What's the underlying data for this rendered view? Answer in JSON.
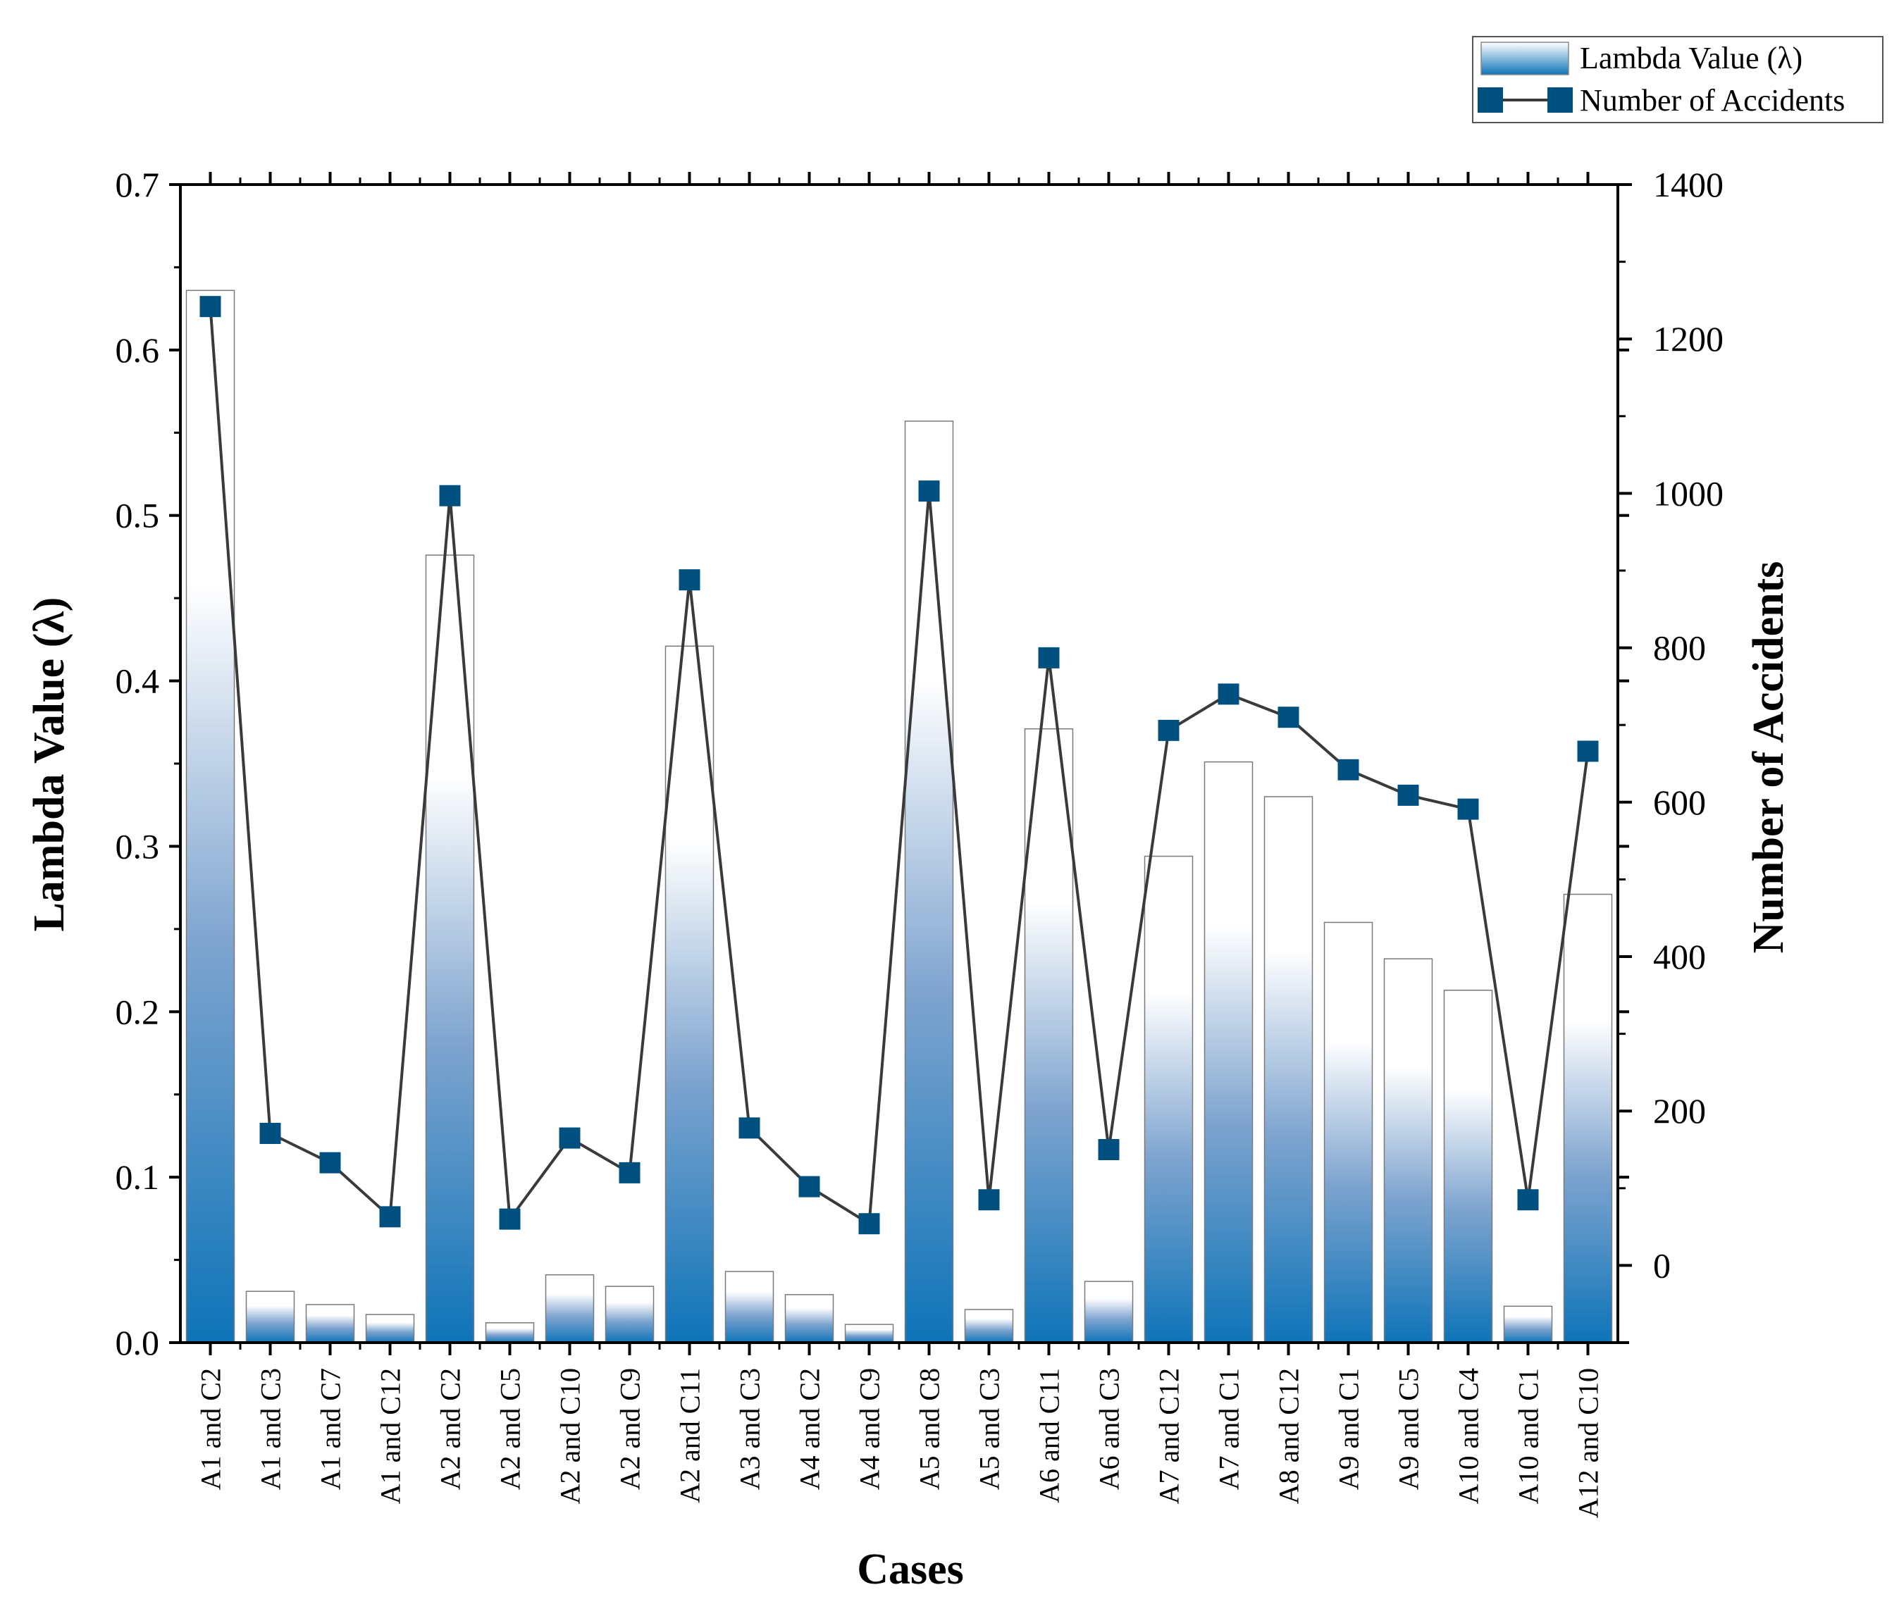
{
  "chart_data": {
    "type": "bar",
    "title": "",
    "xlabel": "Cases",
    "ylabel": "Lambda Value (λ)",
    "y2label": "Number of Accidents",
    "ylim": [
      0,
      0.7
    ],
    "y2lim": [
      -100,
      1400
    ],
    "yticks": [
      "0.0",
      "0.1",
      "0.2",
      "0.3",
      "0.4",
      "0.5",
      "0.6",
      "0.7"
    ],
    "y2ticks": [
      "0",
      "200",
      "400",
      "600",
      "800",
      "1000",
      "1200",
      "1400"
    ],
    "legend_position": "top-right",
    "categories": [
      "A1 and C2",
      "A1 and C3",
      "A1 and C7",
      "A1 and C12",
      "A2 and C2",
      "A2 and C5",
      "A2 and C10",
      "A2 and C9",
      "A2 and C11",
      "A3 and C3",
      "A4 and C2",
      "A4 and C9",
      "A5 and C8",
      "A5 and C3",
      "A6 and C11",
      "A6 and C3",
      "A7 and C12",
      "A7 and C1",
      "A8 and C12",
      "A9 and C1",
      "A9 and C5",
      "A10 and C4",
      "A10 and C1",
      "A12 and C10"
    ],
    "series": [
      {
        "name": "Lambda Value (λ)",
        "type": "bar",
        "axis": "left",
        "values": [
          0.636,
          0.031,
          0.023,
          0.017,
          0.476,
          0.012,
          0.041,
          0.034,
          0.421,
          0.043,
          0.029,
          0.011,
          0.557,
          0.02,
          0.371,
          0.037,
          0.294,
          0.351,
          0.33,
          0.254,
          0.232,
          0.213,
          0.022,
          0.271
        ]
      },
      {
        "name": "Number of Accidents",
        "type": "line",
        "axis": "right",
        "values": [
          1242,
          171,
          133,
          63,
          997,
          60,
          165,
          120,
          888,
          178,
          102,
          54,
          1003,
          85,
          787,
          150,
          693,
          740,
          710,
          642,
          609,
          591,
          85,
          666
        ]
      }
    ],
    "colors": {
      "bar_dark": "#0e74b8",
      "bar_light": "#ffffff",
      "line": "#3a3a3a",
      "marker": "#00507f"
    }
  }
}
